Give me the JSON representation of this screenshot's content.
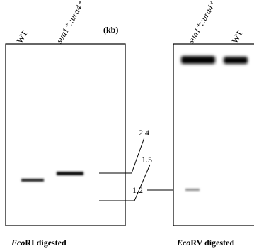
{
  "unit_label": "(kb)",
  "left_gel": {
    "lanes": [
      "WT",
      "sua1⁺::ura4⁺"
    ],
    "caption": {
      "italic": "Eco",
      "rest": "RI digested"
    }
  },
  "right_gel": {
    "lanes": [
      "sua1⁺::ura4⁺",
      "WT"
    ],
    "caption": {
      "italic": "Eco",
      "rest": "RV digested"
    }
  },
  "size_markers": [
    "2.4",
    "1.5",
    "1.2"
  ]
}
